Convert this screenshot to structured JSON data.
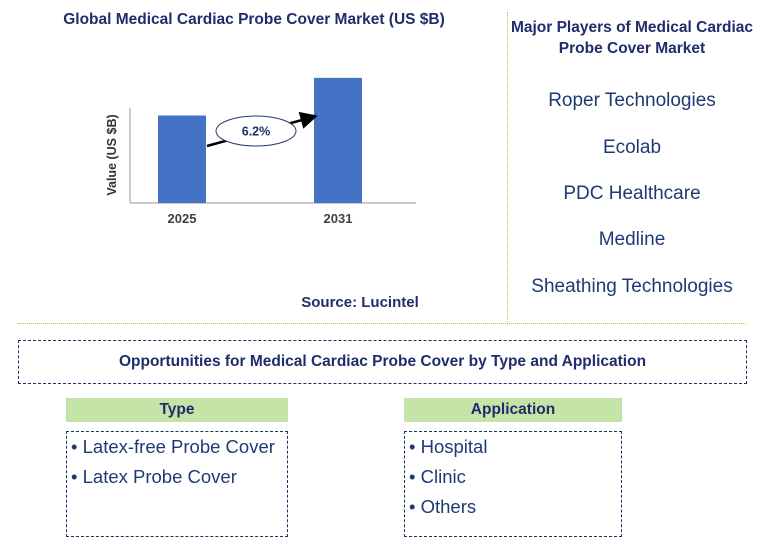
{
  "chart": {
    "title": "Global Medical Cardiac Probe Cover Market (US $B)",
    "source": "Source: Lucintel",
    "cagr_label": "6.2%"
  },
  "chart_data": {
    "type": "bar",
    "title": "Global Medical Cardiac Probe Cover Market (US $B)",
    "ylabel": "Value (US $B)",
    "xlabel": "",
    "categories": [
      "2025",
      "2031"
    ],
    "values": [
      1.0,
      1.43
    ],
    "ylim": [
      0,
      1.6
    ],
    "bar_color": "#4472c4",
    "annotations": [
      "6.2%"
    ],
    "grid": false,
    "legend": "none"
  },
  "players": {
    "title": "Major Players of Medical Cardiac Probe Cover Market",
    "items": [
      "Roper Technologies",
      "Ecolab",
      "PDC Healthcare",
      "Medline",
      "Sheathing Technologies"
    ]
  },
  "opportunities": {
    "title": "Opportunities for Medical Cardiac Probe Cover by Type and Application",
    "type": {
      "header": "Type",
      "items": [
        "• Latex-free Probe Cover",
        "• Latex Probe Cover"
      ]
    },
    "application": {
      "header": "Application",
      "items": [
        "• Hospital",
        "• Clinic",
        "• Others"
      ]
    }
  },
  "colors": {
    "title_text": "#1f2d6b",
    "bar": "#4472c4",
    "header_green": "#c5e4a7",
    "separator": "#d9b43a"
  }
}
